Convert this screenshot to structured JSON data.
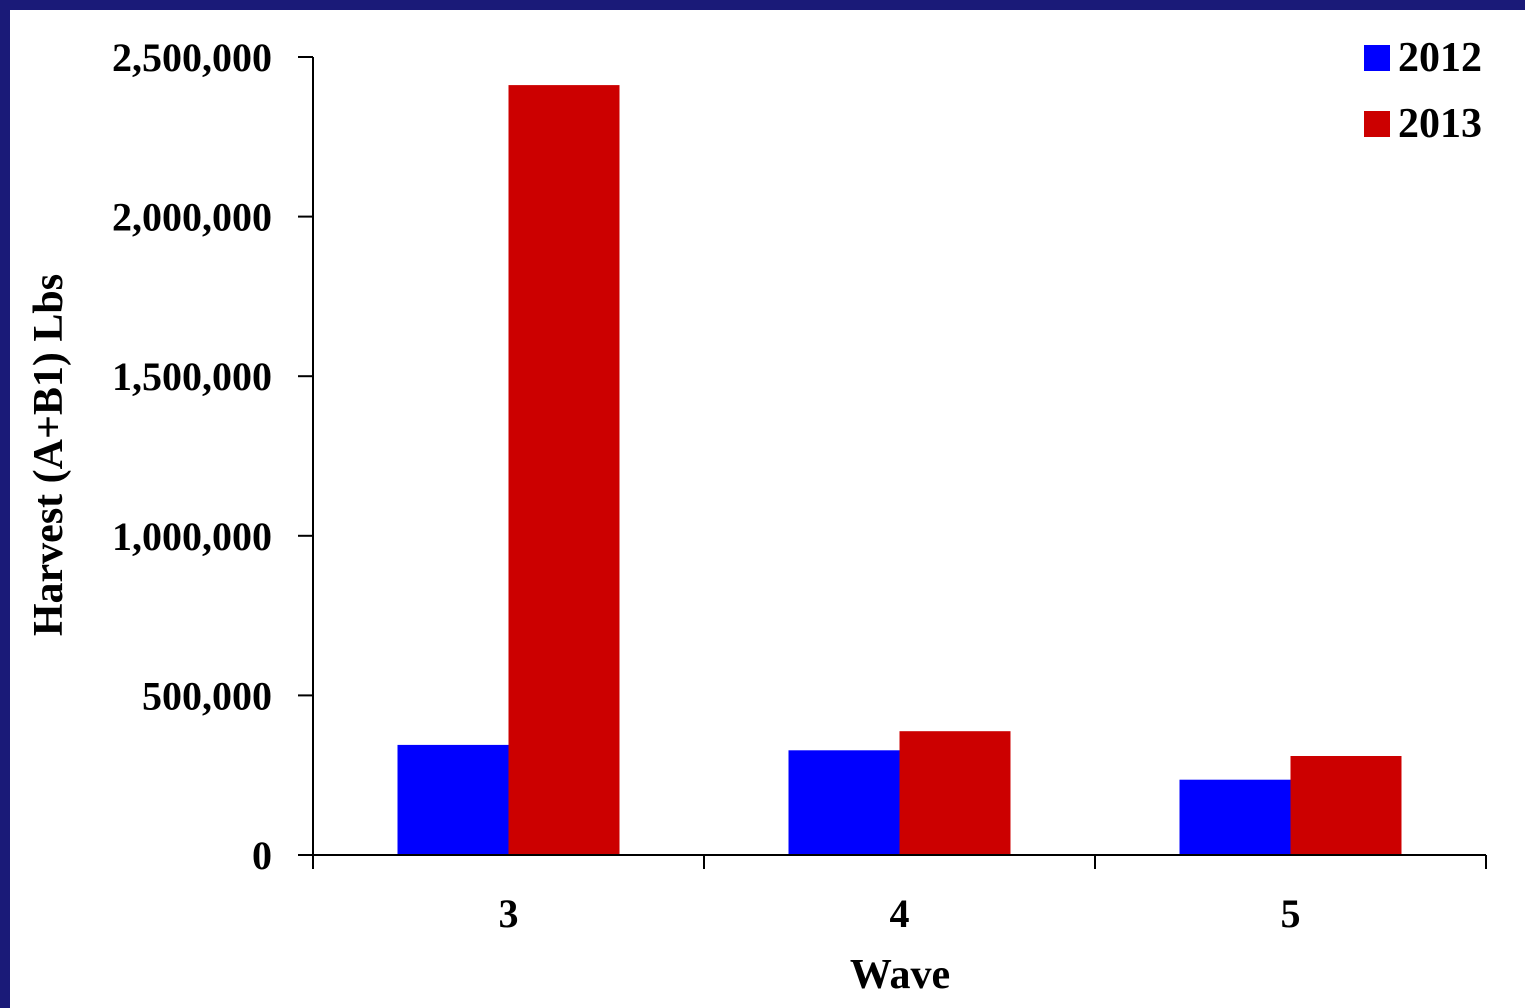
{
  "chart_data": {
    "type": "bar",
    "title": "",
    "xlabel": "Wave",
    "ylabel": "Harvest (A+B1) Lbs",
    "categories": [
      "3",
      "4",
      "5"
    ],
    "series": [
      {
        "name": "2012",
        "color": "#0000ff",
        "values": [
          345000,
          328000,
          236000
        ]
      },
      {
        "name": "2013",
        "color": "#cc0000",
        "values": [
          2412000,
          388000,
          310000
        ]
      }
    ],
    "ylim": [
      0,
      2500000
    ],
    "yticks": [
      0,
      500000,
      1000000,
      1500000,
      2000000,
      2500000
    ],
    "ytick_labels": [
      "0",
      "500,000",
      "1,000,000",
      "1,500,000",
      "2,000,000",
      "2,500,000"
    ],
    "grid": false,
    "legend_position": "top-right"
  }
}
